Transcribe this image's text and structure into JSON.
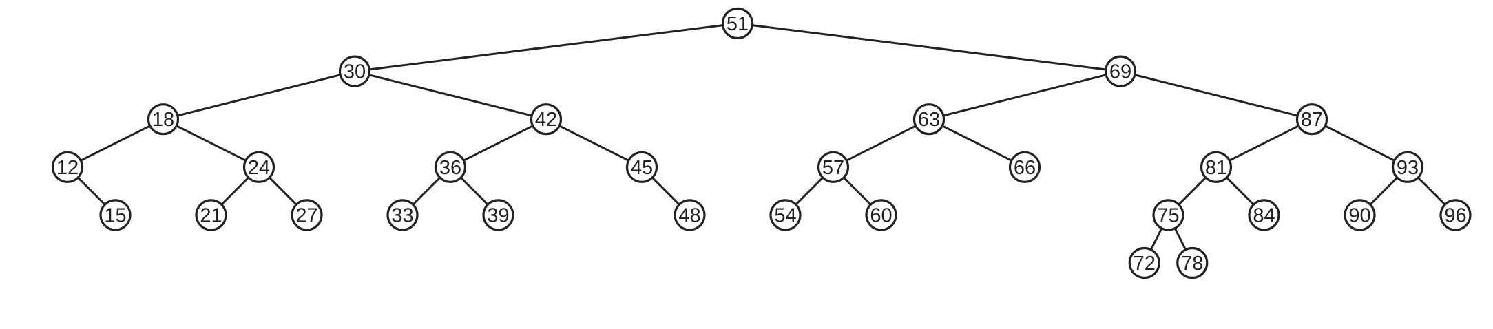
{
  "diagram": {
    "type": "binary-search-tree",
    "root": {
      "value": "51",
      "left": {
        "value": "30",
        "left": {
          "value": "18",
          "left": {
            "value": "12",
            "right": {
              "value": "15"
            }
          },
          "right": {
            "value": "24",
            "left": {
              "value": "21"
            },
            "right": {
              "value": "27"
            }
          }
        },
        "right": {
          "value": "42",
          "left": {
            "value": "36",
            "left": {
              "value": "33"
            },
            "right": {
              "value": "39"
            }
          },
          "right": {
            "value": "45",
            "right": {
              "value": "48"
            }
          }
        }
      },
      "right": {
        "value": "69",
        "left": {
          "value": "63",
          "left": {
            "value": "57",
            "left": {
              "value": "54"
            },
            "right": {
              "value": "60"
            }
          },
          "right": {
            "value": "66"
          }
        },
        "right": {
          "value": "87",
          "left": {
            "value": "81",
            "left": {
              "value": "75",
              "left": {
                "value": "72"
              },
              "right": {
                "value": "78"
              }
            },
            "right": {
              "value": "84"
            }
          },
          "right": {
            "value": "93",
            "left": {
              "value": "90"
            },
            "right": {
              "value": "96"
            }
          }
        }
      }
    }
  },
  "colors": {
    "stroke": "#222222",
    "node_fill": "#ffffff",
    "text": "#222222",
    "background": "#ffffff"
  }
}
